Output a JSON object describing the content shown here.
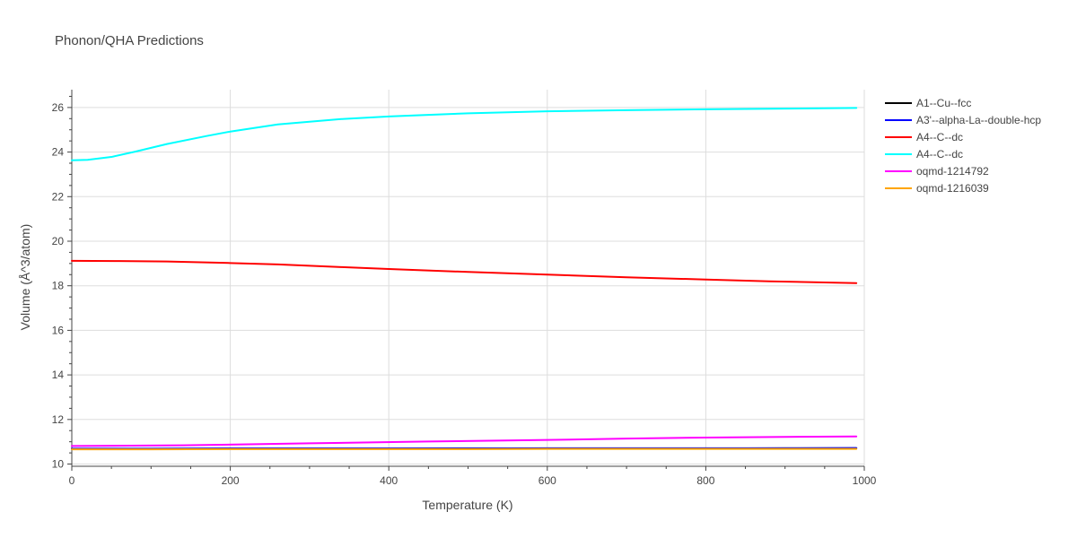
{
  "chart_data": {
    "type": "line",
    "title": "Phonon/QHA Predictions",
    "xlabel": "Temperature (K)",
    "ylabel": "Volume (Å^3/atom)",
    "xlim": [
      0,
      1000
    ],
    "ylim": [
      9.9,
      26.8
    ],
    "xticks": [
      0,
      200,
      400,
      600,
      800,
      1000
    ],
    "yticks": [
      10,
      12,
      14,
      16,
      18,
      20,
      22,
      24,
      26
    ],
    "grid": true,
    "legend_position": "top-right",
    "series": [
      {
        "name": "A1--Cu--fcc",
        "color": "#000000",
        "x": [
          0,
          100,
          200,
          300,
          400,
          500,
          600,
          700,
          800,
          900,
          990
        ],
        "y": [
          10.68,
          10.68,
          10.69,
          10.69,
          10.69,
          10.7,
          10.7,
          10.7,
          10.7,
          10.71,
          10.71
        ]
      },
      {
        "name": "A3'--alpha-La--double-hcp",
        "color": "#0000ff",
        "x": [
          0,
          100,
          200,
          300,
          400,
          500,
          600,
          700,
          800,
          900,
          990
        ],
        "y": [
          10.69,
          10.69,
          10.7,
          10.7,
          10.7,
          10.7,
          10.71,
          10.71,
          10.71,
          10.71,
          10.72
        ]
      },
      {
        "name": "A4--C--dc",
        "color": "#ff0000",
        "x": [
          0,
          60,
          120,
          200,
          260,
          340,
          400,
          500,
          600,
          700,
          800,
          880,
          990
        ],
        "y": [
          19.12,
          19.11,
          19.09,
          19.02,
          18.96,
          18.84,
          18.75,
          18.62,
          18.5,
          18.38,
          18.28,
          18.2,
          18.12
        ]
      },
      {
        "name": "A4--C--dc",
        "color": "#00ffff",
        "x": [
          0,
          20,
          50,
          80,
          120,
          170,
          200,
          260,
          340,
          400,
          500,
          600,
          700,
          800,
          900,
          990
        ],
        "y": [
          23.63,
          23.65,
          23.78,
          24.02,
          24.36,
          24.72,
          24.92,
          25.24,
          25.48,
          25.6,
          25.74,
          25.83,
          25.88,
          25.92,
          25.95,
          25.98
        ]
      },
      {
        "name": "oqmd-1214792",
        "color": "#ff00ff",
        "x": [
          0,
          140,
          300,
          450,
          600,
          700,
          800,
          900,
          990
        ],
        "y": [
          10.81,
          10.84,
          10.93,
          11.01,
          11.08,
          11.14,
          11.19,
          11.22,
          11.24
        ]
      },
      {
        "name": "oqmd-1216039",
        "color": "#ffa500",
        "x": [
          0,
          100,
          200,
          300,
          400,
          500,
          600,
          700,
          800,
          900,
          990
        ],
        "y": [
          10.66,
          10.66,
          10.67,
          10.67,
          10.67,
          10.67,
          10.68,
          10.68,
          10.68,
          10.68,
          10.68
        ]
      }
    ]
  }
}
